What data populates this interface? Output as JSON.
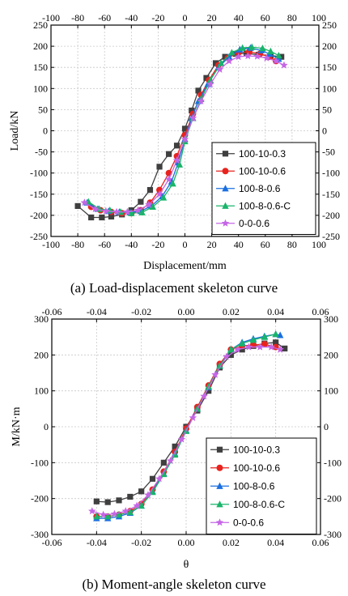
{
  "colors": {
    "100-10-0.3": "#3f3f3f",
    "100-10-0.6": "#e8231e",
    "100-8-0.6": "#1a6fe0",
    "100-8-0.6-C": "#19b46a",
    "0-0-0.6": "#c566e6"
  },
  "chart_data": [
    {
      "type": "line",
      "caption": "(a) Load-displacement skeleton curve",
      "xlabel": "Displacement/mm",
      "ylabel": "Load/kN",
      "xlim": [
        -100,
        100
      ],
      "ylim": [
        -250,
        250
      ],
      "xticks": [
        "-100",
        "-80",
        "-60",
        "-40",
        "-20",
        "0",
        "20",
        "40",
        "60",
        "80",
        "100"
      ],
      "yticks": [
        "-250",
        "-200",
        "-150",
        "-100",
        "-50",
        "0",
        "50",
        "100",
        "150",
        "200",
        "250"
      ],
      "grid": true,
      "legend_position": "bottom-right",
      "series": [
        {
          "name": "100-10-0.3",
          "marker": "square",
          "x": [
            -80,
            -70,
            -62,
            -55,
            -47,
            -40,
            -33,
            -26,
            -19,
            -12,
            -6,
            0,
            5,
            10,
            16,
            23,
            30,
            38,
            46,
            55,
            64,
            72
          ],
          "y": [
            -178,
            -205,
            -205,
            -203,
            -198,
            -188,
            -168,
            -140,
            -85,
            -55,
            -35,
            5,
            48,
            95,
            125,
            160,
            175,
            182,
            183,
            180,
            178,
            175
          ]
        },
        {
          "name": "100-10-0.6",
          "marker": "circle",
          "x": [
            -70,
            -63,
            -55,
            -47,
            -40,
            -33,
            -26,
            -19,
            -12,
            -6,
            0,
            6,
            12,
            18,
            25,
            32,
            40,
            48,
            56,
            63,
            68
          ],
          "y": [
            -180,
            -188,
            -192,
            -195,
            -195,
            -188,
            -170,
            -140,
            -100,
            -60,
            -10,
            40,
            85,
            120,
            155,
            172,
            185,
            187,
            182,
            175,
            165
          ]
        },
        {
          "name": "100-8-0.6",
          "marker": "triangle",
          "x": [
            -73,
            -65,
            -57,
            -49,
            -41,
            -33,
            -25,
            -17,
            -10,
            -5,
            0,
            5,
            10,
            17,
            25,
            33,
            41,
            49,
            57,
            63,
            70
          ],
          "y": [
            -170,
            -185,
            -190,
            -192,
            -193,
            -190,
            -178,
            -155,
            -120,
            -75,
            -20,
            30,
            70,
            110,
            150,
            175,
            192,
            196,
            190,
            182,
            170
          ]
        },
        {
          "name": "100-8-0.6-C",
          "marker": "triangle",
          "x": [
            -72,
            -64,
            -56,
            -48,
            -40,
            -32,
            -24,
            -16,
            -9,
            -4,
            0,
            6,
            12,
            19,
            27,
            35,
            43,
            50,
            58,
            64,
            70
          ],
          "y": [
            -168,
            -185,
            -188,
            -192,
            -195,
            -193,
            -180,
            -158,
            -125,
            -80,
            -25,
            30,
            75,
            120,
            160,
            185,
            196,
            198,
            195,
            188,
            178
          ]
        },
        {
          "name": "0-0-0.6",
          "marker": "star",
          "x": [
            -75,
            -67,
            -59,
            -51,
            -43,
            -35,
            -27,
            -19,
            -12,
            -6,
            0,
            6,
            12,
            19,
            26,
            33,
            40,
            47,
            54,
            61,
            68,
            74
          ],
          "y": [
            -170,
            -185,
            -190,
            -192,
            -192,
            -188,
            -175,
            -150,
            -115,
            -70,
            -20,
            30,
            70,
            110,
            145,
            165,
            175,
            177,
            176,
            172,
            165,
            155
          ]
        }
      ]
    },
    {
      "type": "line",
      "caption": "(b) Moment-angle skeleton curve",
      "xlabel": "θ",
      "ylabel": "M/kN·m",
      "xlim": [
        -0.06,
        0.06
      ],
      "ylim": [
        -300,
        300
      ],
      "xticks": [
        "-0.06",
        "-0.04",
        "-0.02",
        "0.00",
        "0.02",
        "0.04",
        "0.06"
      ],
      "yticks": [
        "-300",
        "-200",
        "-100",
        "0",
        "100",
        "200",
        "300"
      ],
      "grid": true,
      "legend_position": "bottom-right",
      "series": [
        {
          "name": "100-10-0.3",
          "marker": "square",
          "x": [
            -0.04,
            -0.035,
            -0.03,
            -0.025,
            -0.02,
            -0.015,
            -0.01,
            -0.005,
            0,
            0.005,
            0.01,
            0.015,
            0.02,
            0.025,
            0.03,
            0.035,
            0.04,
            0.044
          ],
          "y": [
            -208,
            -210,
            -205,
            -195,
            -180,
            -145,
            -100,
            -55,
            0,
            45,
            100,
            165,
            200,
            215,
            225,
            232,
            235,
            218
          ]
        },
        {
          "name": "100-10-0.6",
          "marker": "circle",
          "x": [
            -0.04,
            -0.035,
            -0.03,
            -0.025,
            -0.02,
            -0.015,
            -0.01,
            -0.005,
            0,
            0.005,
            0.01,
            0.015,
            0.02,
            0.025,
            0.03,
            0.035,
            0.04
          ],
          "y": [
            -250,
            -250,
            -245,
            -235,
            -215,
            -175,
            -125,
            -70,
            -5,
            55,
            115,
            175,
            215,
            225,
            228,
            230,
            222
          ]
        },
        {
          "name": "100-8-0.6",
          "marker": "triangle",
          "x": [
            -0.04,
            -0.035,
            -0.03,
            -0.025,
            -0.02,
            -0.015,
            -0.01,
            -0.005,
            0,
            0.005,
            0.01,
            0.015,
            0.02,
            0.025,
            0.03,
            0.035,
            0.04,
            0.042
          ],
          "y": [
            -255,
            -255,
            -250,
            -240,
            -220,
            -180,
            -130,
            -75,
            -10,
            50,
            110,
            170,
            215,
            235,
            245,
            252,
            258,
            255
          ]
        },
        {
          "name": "100-8-0.6-C",
          "marker": "triangle",
          "x": [
            -0.04,
            -0.035,
            -0.03,
            -0.025,
            -0.02,
            -0.015,
            -0.01,
            -0.005,
            0,
            0.005,
            0.01,
            0.015,
            0.02,
            0.025,
            0.03,
            0.035,
            0.04
          ],
          "y": [
            -250,
            -250,
            -245,
            -238,
            -220,
            -182,
            -132,
            -78,
            -12,
            50,
            112,
            170,
            215,
            232,
            242,
            250,
            258
          ]
        },
        {
          "name": "0-0-0.6",
          "marker": "star",
          "x": [
            -0.042,
            -0.037,
            -0.032,
            -0.027,
            -0.022,
            -0.017,
            -0.012,
            -0.007,
            -0.002,
            0.003,
            0.008,
            0.013,
            0.018,
            0.023,
            0.028,
            0.033,
            0.038,
            0.042
          ],
          "y": [
            -235,
            -245,
            -243,
            -235,
            -220,
            -190,
            -145,
            -95,
            -35,
            25,
            85,
            145,
            195,
            215,
            222,
            222,
            222,
            215
          ]
        }
      ]
    }
  ]
}
